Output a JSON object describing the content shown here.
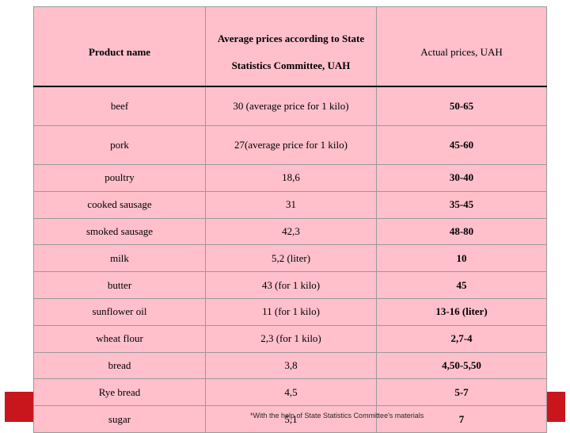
{
  "table": {
    "headers": [
      "Product name",
      "Average prices according to State Statistics Committee, UAH",
      "Actual prices, UAH"
    ],
    "rows": [
      {
        "product": "beef",
        "avg": "30 (average price for 1 kilo)",
        "actual": "50-65"
      },
      {
        "product": "pork",
        "avg": "27(average price for 1 kilo)",
        "actual": "45-60"
      },
      {
        "product": "poultry",
        "avg": "18,6",
        "actual": "30-40"
      },
      {
        "product": "cooked sausage",
        "avg": "31",
        "actual": "35-45"
      },
      {
        "product": "smoked sausage",
        "avg": "42,3",
        "actual": "48-80"
      },
      {
        "product": "milk",
        "avg": "5,2 (liter)",
        "actual": "10"
      },
      {
        "product": "butter",
        "avg": "43 (for 1 kilo)",
        "actual": "45"
      },
      {
        "product": "sunflower oil",
        "avg": "11 (for 1 kilo)",
        "actual": "13-16 (liter)"
      },
      {
        "product": "wheat flour",
        "avg": "2,3 (for 1 kilo)",
        "actual": "2,7-4"
      },
      {
        "product": "bread",
        "avg": "3,8",
        "actual": "4,50-5,50"
      },
      {
        "product": "Rye bread",
        "avg": "4,5",
        "actual": "5-7"
      },
      {
        "product": "sugar",
        "avg": "5,1",
        "actual": "7"
      }
    ]
  },
  "footnote": "*With the help of State Statistics Committee's materials",
  "colors": {
    "cell_background": "#ffc0cb",
    "band": "#c9161c"
  }
}
